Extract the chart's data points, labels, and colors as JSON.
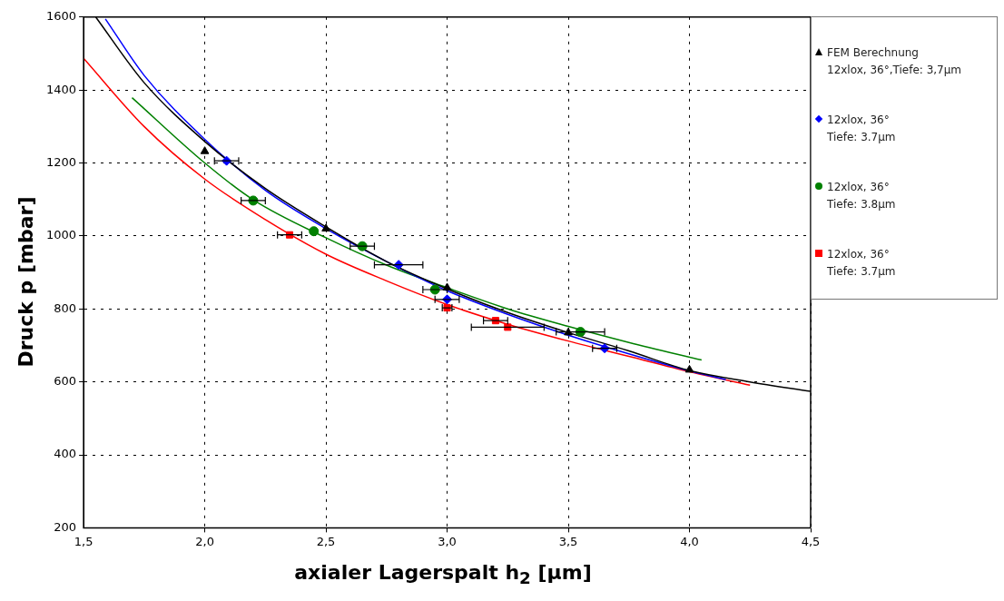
{
  "chart_data": {
    "type": "scatter",
    "xlabel": "axialer Lagerspalt h$_{2}$ [µm]",
    "ylabel": "Druck p [mbar]",
    "xlim": [
      1.5,
      4.5
    ],
    "xticks": [
      {
        "value": 1.5,
        "label": "1,5"
      },
      {
        "value": 2,
        "label": "2,0"
      },
      {
        "value": 2.5,
        "label": "2,5"
      },
      {
        "value": 3,
        "label": "3,0"
      },
      {
        "value": 3.5,
        "label": "3,5"
      },
      {
        "value": 4,
        "label": "4,0"
      },
      {
        "value": 4.5,
        "label": "4,5"
      }
    ],
    "ylim": [
      200,
      1600
    ],
    "yticks": [
      200,
      400,
      600,
      800,
      1000,
      1200,
      1400,
      1600
    ],
    "grid": true,
    "legend": "right",
    "series": [
      {
        "name": "FEM Berechnung\n12xlox, 36°,Tiefe: 3,7µm",
        "color": "#000000",
        "marker": "triangle",
        "x": [
          2.0,
          2.5,
          3.0,
          3.5,
          4.0
        ],
        "values": [
          1232,
          1020,
          858,
          735,
          633
        ]
      },
      {
        "name": "12xlox, 36°\nTiefe: 3.7µm",
        "color": "#0000ff",
        "marker": "diamond",
        "x": [
          2.09,
          2.8,
          3.0,
          3.65
        ],
        "values": [
          1206,
          921,
          826,
          692
        ],
        "xerrors": [
          0.05,
          0.1,
          0.05,
          0.05
        ]
      },
      {
        "name": "12xlox, 36°\nTiefe: 3.8µm",
        "color": "#008000",
        "marker": "circle",
        "x": [
          2.2,
          2.45,
          2.65,
          2.95,
          3.55
        ],
        "values": [
          1097,
          1013,
          972,
          853,
          737
        ],
        "xerrors": [
          0.05,
          null,
          0.05,
          0.05,
          0.1
        ]
      },
      {
        "name": "12xlox, 36°\nTiefe: 3.7µm",
        "color": "#ff0000",
        "marker": "square",
        "x": [
          2.35,
          3.0,
          3.2,
          3.25
        ],
        "values": [
          1003,
          803,
          768,
          750
        ],
        "xerrors": [
          0.05,
          0.02,
          0.05,
          [
            3.1,
            3.4
          ]
        ]
      },
      {
        "type": "line",
        "color": "#000000",
        "x": [
          1.55,
          1.75,
          2.0,
          2.25,
          2.5,
          2.75,
          3.0,
          3.25,
          3.5,
          3.75,
          4.0,
          4.25,
          4.5
        ],
        "values": [
          1600,
          1420,
          1259,
          1130,
          1025,
          930,
          855,
          790,
          735,
          685,
          631,
          600,
          574
        ]
      },
      {
        "type": "line",
        "color": "#0000ff",
        "x": [
          1.59,
          1.75,
          2.0,
          2.25,
          2.5,
          2.75,
          3.0,
          3.25,
          3.5,
          3.75,
          4.0,
          4.15
        ],
        "values": [
          1595,
          1440,
          1265,
          1125,
          1020,
          930,
          850,
          785,
          728,
          677,
          630,
          606
        ]
      },
      {
        "type": "line",
        "color": "#008000",
        "x": [
          1.7,
          2.0,
          2.2,
          2.5,
          2.75,
          3.0,
          3.25,
          3.5,
          3.75,
          4.05
        ],
        "values": [
          1379,
          1200,
          1099,
          995,
          920,
          858,
          800,
          752,
          708,
          660
        ]
      },
      {
        "type": "line",
        "color": "#ff0000",
        "x": [
          1.5,
          1.75,
          2.0,
          2.25,
          2.5,
          2.75,
          3.0,
          3.25,
          3.5,
          3.75,
          4.0,
          4.25
        ],
        "values": [
          1487,
          1300,
          1156,
          1045,
          950,
          877,
          812,
          758,
          712,
          670,
          628,
          591
        ]
      }
    ]
  }
}
